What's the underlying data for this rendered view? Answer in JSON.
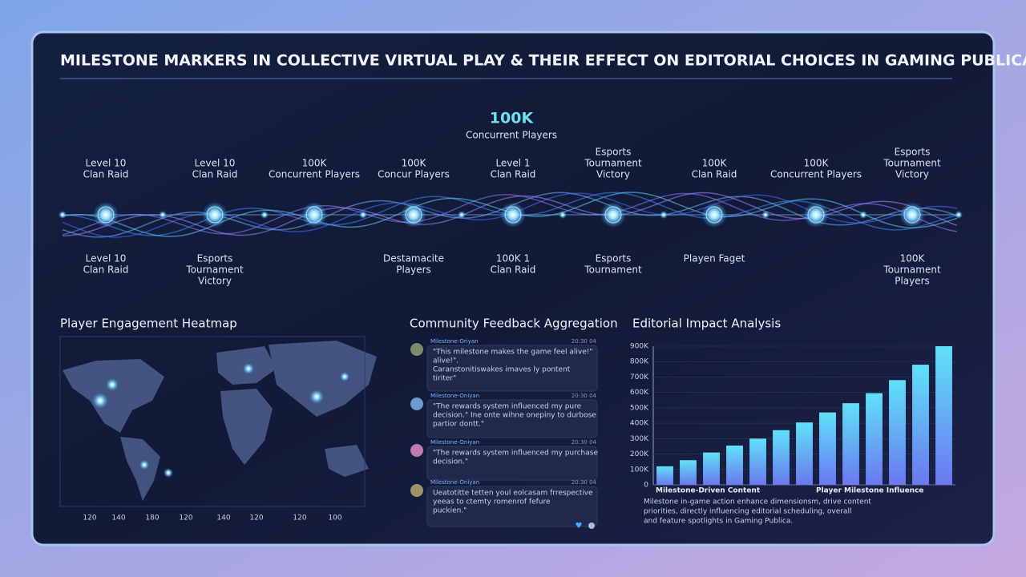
{
  "header": {
    "title": "MILESTONE MARKERS IN COLLECTIVE VIRTUAL PLAY & THEIR EFFECT ON EDITORIAL CHOICES IN GAMING PUBLICA"
  },
  "timeline": {
    "highlight": {
      "value": "100K",
      "label": "Concurrent Players"
    },
    "top_labels": [
      [
        "Level 10",
        "Clan Raid"
      ],
      [
        "Level 10",
        "Clan Raid"
      ],
      [
        "100K",
        "Concurrent Players"
      ],
      [
        "100K",
        "Concur Players"
      ],
      [
        "Level 1",
        "Clan Raid"
      ],
      [
        "Esports",
        "Tournament",
        "Victory"
      ],
      [
        "100K",
        "Clan Raid"
      ],
      [
        "100K",
        "Concurrent Players"
      ],
      [
        "Esports",
        "Tournament",
        "Victory"
      ]
    ],
    "bottom_labels": [
      [
        "Level 10",
        "Clan Raid"
      ],
      [
        "Esports",
        "Tournament",
        "Victory"
      ],
      null,
      [
        "Destamacite",
        "Players"
      ],
      [
        "100K 1",
        "Clan Raid"
      ],
      [
        "Esports",
        "Tournament"
      ],
      [
        "Playen Faget"
      ],
      null,
      [
        "100K",
        "Tournament",
        "Players"
      ]
    ]
  },
  "heatmap": {
    "title": "Player Engagement Heatmap",
    "axis_labels": [
      "120",
      "140",
      "180",
      "120",
      "140",
      "120",
      "120",
      "100"
    ]
  },
  "feedback": {
    "title": "Community Feedback Aggregation",
    "comments": [
      {
        "user": "Milestone-Oriyan",
        "time": "20:30 04",
        "lines": [
          "\"This milestone makes the game feel alive!\"",
          "alive!\".",
          "Caranstonitiswakes imaves ly pontent",
          "tiriter\""
        ]
      },
      {
        "user": "Milestone-Oniyan",
        "time": "20:30 04",
        "lines": [
          "\"The rewards system influenced my pure",
          "decision.\" Ine onte wihne onepiny to durbose",
          "partior dontt.\""
        ]
      },
      {
        "user": "Milestone-Oniyan",
        "time": "20:30 04",
        "lines": [
          "\"The rewards system influenced my purchase",
          "decision.\""
        ]
      },
      {
        "user": "Milestone-Oniyan",
        "time": "20:30 04",
        "lines": [
          "Ueatotitte tetten youl eolcasam frrespective",
          "yeeas to ctemty romenrof fefure",
          "puckien.\""
        ]
      }
    ]
  },
  "chart_data": {
    "type": "bar",
    "title": "Editorial Impact Analysis",
    "xlabels": [
      "Milestone-Driven Content",
      "Player Milestone Influence"
    ],
    "values": [
      120000,
      160000,
      210000,
      255000,
      300000,
      355000,
      405000,
      470000,
      530000,
      595000,
      680000,
      780000,
      900000
    ],
    "colors": [
      "#6a78f0",
      "#5fe2f8"
    ],
    "ylim": [
      0,
      900000
    ],
    "yticks": [
      {
        "value": 0,
        "label": "0"
      },
      {
        "value": 100000,
        "label": "100K"
      },
      {
        "value": 200000,
        "label": "200K"
      },
      {
        "value": 300000,
        "label": "300K"
      },
      {
        "value": 400000,
        "label": "400K"
      },
      {
        "value": 500000,
        "label": "500K"
      },
      {
        "value": 600000,
        "label": "600K"
      },
      {
        "value": 700000,
        "label": "700K"
      },
      {
        "value": 800000,
        "label": "800K"
      },
      {
        "value": 900000,
        "label": "900K"
      }
    ],
    "description": [
      "Milestone in-game action enhance dimensionsm, drive content",
      "priorities, directly influencing editorial scheduling, overall",
      "and feature spotlights in Gaming Publica."
    ]
  }
}
